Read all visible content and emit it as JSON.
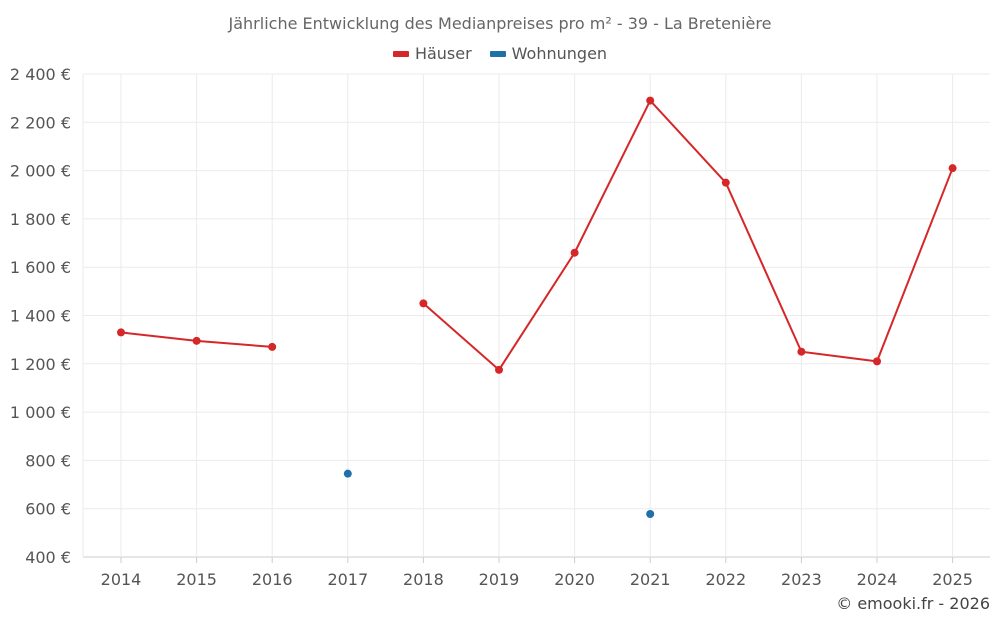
{
  "chart_data": {
    "type": "line",
    "title": "Jährliche Entwicklung des Medianpreises pro m² - 39 - La Bretenière",
    "categories": [
      "2014",
      "2015",
      "2016",
      "2017",
      "2018",
      "2019",
      "2020",
      "2021",
      "2022",
      "2023",
      "2024",
      "2025"
    ],
    "series": [
      {
        "name": "Häuser",
        "color": "#d62728",
        "values": [
          1330,
          1295,
          1270,
          null,
          1450,
          1175,
          1660,
          2290,
          1950,
          1250,
          1210,
          2010
        ]
      },
      {
        "name": "Wohnungen",
        "color": "#1f6fa8",
        "values": [
          null,
          null,
          null,
          745,
          null,
          null,
          null,
          578,
          null,
          null,
          null,
          null
        ]
      }
    ],
    "ylim": [
      400,
      2400
    ],
    "yticks": [
      400,
      600,
      800,
      1000,
      1200,
      1400,
      1600,
      1800,
      2000,
      2200,
      2400
    ],
    "ytick_labels": [
      "400 €",
      "600 €",
      "800 €",
      "1 000 €",
      "1 200 €",
      "1 400 €",
      "1 600 €",
      "1 800 €",
      "2 000 €",
      "2 200 €",
      "2 400 €"
    ],
    "grid": true,
    "legend_position": "top-center"
  },
  "credit": "© emooki.fr - 2026"
}
